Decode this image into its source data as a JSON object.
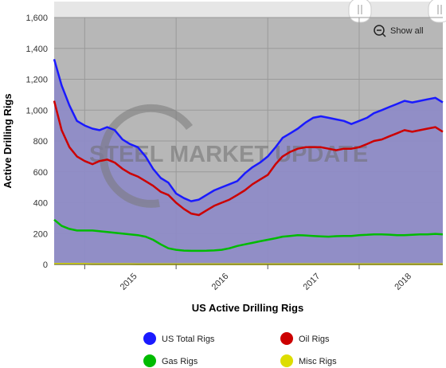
{
  "chart_data": {
    "type": "area",
    "xlabel": "US Active Drilling Rigs",
    "ylabel": "Active Drilling Rigs",
    "ylim": [
      0,
      1600
    ],
    "yticks": [
      0,
      200,
      400,
      600,
      800,
      1000,
      1200,
      1400,
      1600
    ],
    "xlim": [
      "2014-09-01",
      "2018-12-01"
    ],
    "xticks": [
      {
        "label": "2015",
        "date": "2015-01-01"
      },
      {
        "label": "2016",
        "date": "2016-01-01"
      },
      {
        "label": "2017",
        "date": "2017-01-01"
      },
      {
        "label": "2018",
        "date": "2018-01-01"
      }
    ],
    "grid": true,
    "legend": "bottom",
    "dates": [
      "2014-09-01",
      "2014-10-01",
      "2014-11-01",
      "2014-12-01",
      "2015-01-01",
      "2015-02-01",
      "2015-03-01",
      "2015-04-01",
      "2015-05-01",
      "2015-06-01",
      "2015-07-01",
      "2015-08-01",
      "2015-09-01",
      "2015-10-01",
      "2015-11-01",
      "2015-12-01",
      "2016-01-01",
      "2016-02-01",
      "2016-03-01",
      "2016-04-01",
      "2016-05-01",
      "2016-06-01",
      "2016-07-01",
      "2016-08-01",
      "2016-09-01",
      "2016-10-01",
      "2016-11-01",
      "2016-12-01",
      "2017-01-01",
      "2017-02-01",
      "2017-03-01",
      "2017-04-01",
      "2017-05-01",
      "2017-06-01",
      "2017-07-01",
      "2017-08-01",
      "2017-09-01",
      "2017-10-01",
      "2017-11-01",
      "2017-12-01",
      "2018-01-01",
      "2018-02-01",
      "2018-03-01",
      "2018-04-01",
      "2018-05-01",
      "2018-06-01",
      "2018-07-01",
      "2018-08-01",
      "2018-09-01",
      "2018-10-01",
      "2018-11-01",
      "2018-12-01"
    ],
    "series": [
      {
        "name": "US Total Rigs",
        "color": "#1a1aff",
        "values": [
          1330,
          1160,
          1030,
          930,
          900,
          880,
          870,
          890,
          870,
          810,
          780,
          760,
          700,
          620,
          560,
          530,
          460,
          430,
          410,
          420,
          450,
          480,
          500,
          520,
          540,
          590,
          630,
          660,
          700,
          760,
          820,
          850,
          880,
          920,
          950,
          960,
          950,
          940,
          930,
          910,
          930,
          950,
          980,
          1000,
          1020,
          1040,
          1060,
          1050,
          1060,
          1070,
          1080,
          1050
        ]
      },
      {
        "name": "Oil Rigs",
        "color": "#cc0000",
        "values": [
          1060,
          870,
          760,
          700,
          670,
          650,
          670,
          680,
          660,
          620,
          590,
          570,
          540,
          510,
          470,
          450,
          400,
          360,
          330,
          320,
          350,
          380,
          400,
          420,
          450,
          480,
          520,
          550,
          580,
          650,
          700,
          730,
          750,
          760,
          760,
          760,
          750,
          740,
          750,
          750,
          760,
          780,
          800,
          810,
          830,
          850,
          870,
          860,
          870,
          880,
          890,
          860
        ]
      },
      {
        "name": "Gas Rigs",
        "color": "#00bb00",
        "values": [
          290,
          250,
          230,
          220,
          220,
          220,
          215,
          210,
          205,
          200,
          195,
          190,
          180,
          160,
          130,
          105,
          95,
          90,
          88,
          88,
          89,
          91,
          95,
          105,
          120,
          130,
          140,
          150,
          160,
          170,
          180,
          185,
          190,
          188,
          185,
          182,
          180,
          183,
          185,
          185,
          190,
          192,
          195,
          195,
          193,
          190,
          190,
          192,
          195,
          195,
          198,
          195
        ]
      },
      {
        "name": "Misc Rigs",
        "color": "#dddd00",
        "values": [
          3,
          3,
          3,
          3,
          3,
          2,
          2,
          2,
          2,
          2,
          2,
          1,
          1,
          1,
          1,
          1,
          1,
          1,
          1,
          1,
          1,
          1,
          1,
          1,
          1,
          1,
          1,
          1,
          1,
          1,
          1,
          1,
          1,
          1,
          1,
          1,
          1,
          1,
          1,
          1,
          1,
          1,
          1,
          1,
          1,
          1,
          1,
          1,
          1,
          1,
          1,
          1
        ]
      }
    ]
  },
  "controls": {
    "show_all_label": "Show all"
  },
  "watermark": {
    "text": "STEEL MARKET UPDATE"
  }
}
